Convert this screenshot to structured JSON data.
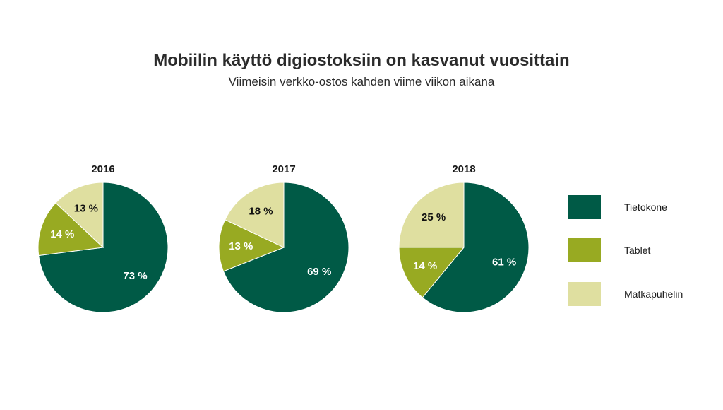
{
  "title": "Mobiilin käyttö digiostoksiin on kasvanut vuosittain",
  "subtitle": "Viimeisin verkko-ostos kahden viime viikon aikana",
  "colors": {
    "Tietokone": "#005a46",
    "Tablet": "#98aa22",
    "Matkapuhelin": "#dfdfa0"
  },
  "chart_data": {
    "type": "pie",
    "categories": [
      "Tietokone",
      "Tablet",
      "Matkapuhelin"
    ],
    "legend": [
      "Tietokone",
      "Tablet",
      "Matkapuhelin"
    ],
    "legend_position": "right",
    "pies": [
      {
        "title": "2016",
        "values": [
          73,
          14,
          13
        ],
        "labels": [
          "73 %",
          "14 %",
          "13 %"
        ]
      },
      {
        "title": "2017",
        "values": [
          69,
          13,
          18
        ],
        "labels": [
          "69 %",
          "13 %",
          "18 %"
        ]
      },
      {
        "title": "2018",
        "values": [
          61,
          14,
          25
        ],
        "labels": [
          "61 %",
          "14 %",
          "25 %"
        ]
      }
    ]
  }
}
